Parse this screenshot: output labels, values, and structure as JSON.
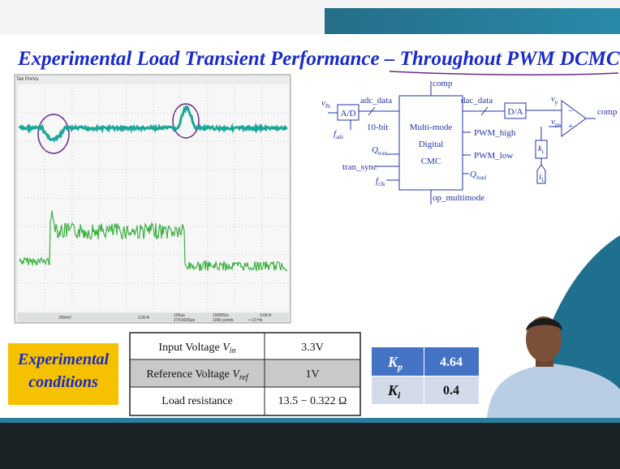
{
  "title": "Experimental Load Transient Performance – Throughout PWM DCMC",
  "scope": {
    "header": "Tek PreVu",
    "readouts": [
      "200mV",
      "2.00 A",
      "100μs",
      "274.6000μs",
      "100MS/s",
      "100k points",
      "3.68 A",
      "< 10 Hz"
    ]
  },
  "diagram": {
    "labels": [
      {
        "text": "v",
        "sub": "fb"
      },
      {
        "text": "adc_data"
      },
      {
        "text": "10-bit"
      },
      {
        "text": "f",
        "sub": "adc"
      },
      {
        "text": "Q",
        "sub": "tran"
      },
      {
        "text": "tran_sync"
      },
      {
        "text": "f",
        "sub": "clk"
      },
      {
        "text": "comp"
      },
      {
        "text": "Multi-mode"
      },
      {
        "text": "Digital"
      },
      {
        "text": "CMC"
      },
      {
        "text": "PWM_high"
      },
      {
        "text": "PWM_low"
      },
      {
        "text": "Q",
        "sub": "load"
      },
      {
        "text": "op_multimode"
      },
      {
        "text": "dac_data"
      },
      {
        "text": "A/D"
      },
      {
        "text": "D/A"
      },
      {
        "text": "v",
        "sub": "p"
      },
      {
        "text": "v",
        "sub": "pn"
      },
      {
        "text": "comp"
      },
      {
        "text": "k",
        "sub": "c"
      },
      {
        "text": "i",
        "sub": "L"
      },
      {
        "text": "−"
      },
      {
        "text": "+"
      }
    ]
  },
  "conditions": {
    "label_line1": "Experimental",
    "label_line2": "conditions",
    "rows": [
      {
        "name": "Input Voltage ",
        "symbol": "V",
        "sub": "in",
        "value": "3.3V"
      },
      {
        "name": "Reference Voltage ",
        "symbol": "V",
        "sub": "ref",
        "value": "1V"
      },
      {
        "name": "Load resistance",
        "value": "13.5 − 0.322 Ω"
      }
    ]
  },
  "gains": {
    "rows": [
      {
        "symbol": "K",
        "sub": "p",
        "value": "4.64"
      },
      {
        "symbol": "K",
        "sub": "i",
        "value": "0.4"
      }
    ]
  }
}
